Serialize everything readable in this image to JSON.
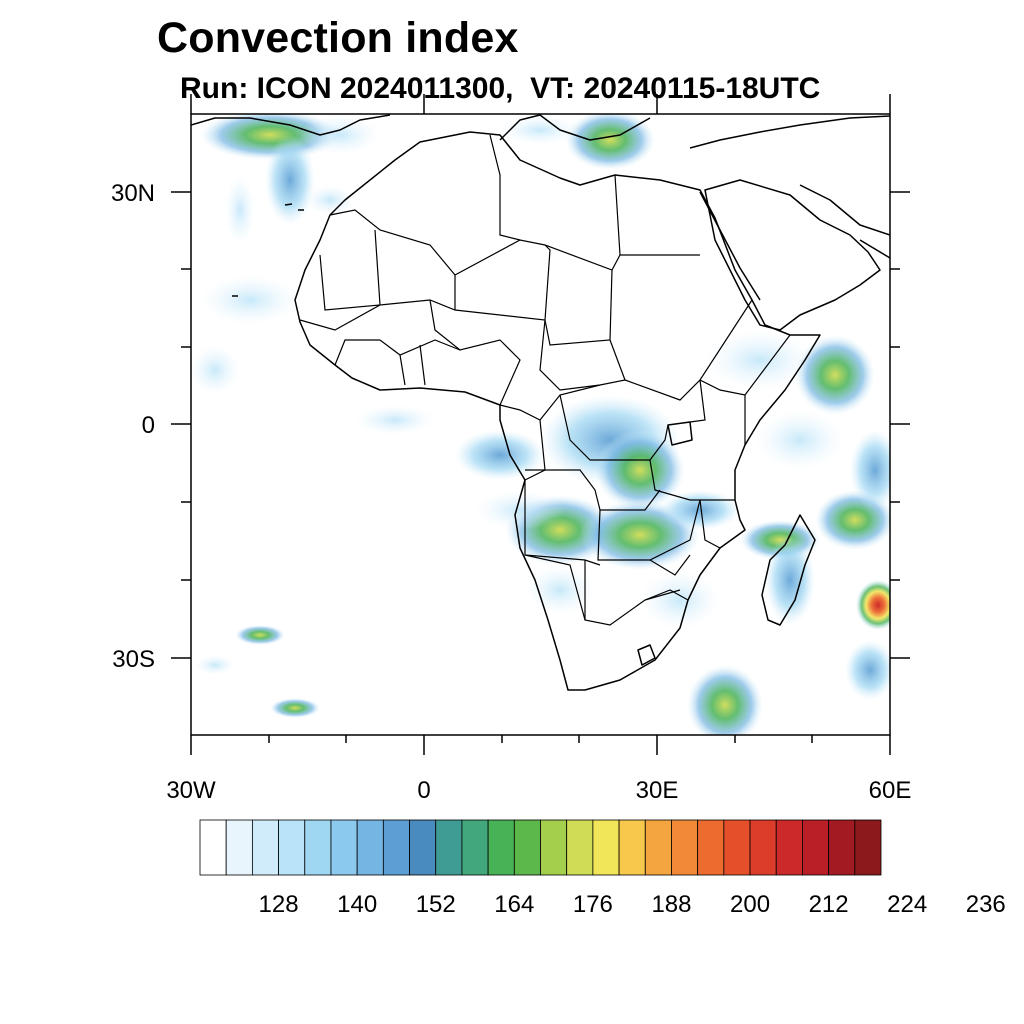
{
  "title": "Convection index",
  "subtitle": "Run: ICON 2024011300,  VT: 20240115-18UTC",
  "map": {
    "region": "Africa",
    "lon_range": [
      -30,
      60
    ],
    "lat_range": [
      -40,
      40
    ],
    "lon_ticks": [
      {
        "value": -30,
        "label": "30W"
      },
      {
        "value": 0,
        "label": "0"
      },
      {
        "value": 30,
        "label": "30E"
      },
      {
        "value": 60,
        "label": "60E"
      }
    ],
    "lat_ticks": [
      {
        "value": 30,
        "label": "30N"
      },
      {
        "value": 0,
        "label": "0"
      },
      {
        "value": -30,
        "label": "30S"
      }
    ]
  },
  "colorbar": {
    "levels": [
      128,
      140,
      152,
      164,
      176,
      188,
      200,
      212,
      224,
      236
    ],
    "colors": [
      "#ffffff",
      "#e8f5fd",
      "#d0ecfa",
      "#b9e3f8",
      "#9fd7f3",
      "#8bc9ee",
      "#74b5e3",
      "#5d9fd4",
      "#4a8bbf",
      "#3f9c94",
      "#42a77a",
      "#48b257",
      "#5cb84b",
      "#a3cf4d",
      "#cfdc55",
      "#f1e55a",
      "#f7c84b",
      "#f5a540",
      "#f18a36",
      "#ed6b2f",
      "#e5502a",
      "#dc3c2a",
      "#cc2a2a",
      "#b81f26",
      "#a31b22",
      "#8c1a1c"
    ],
    "labels": [
      "128",
      "140",
      "152",
      "164",
      "176",
      "188",
      "200",
      "212",
      "224",
      "236"
    ]
  }
}
